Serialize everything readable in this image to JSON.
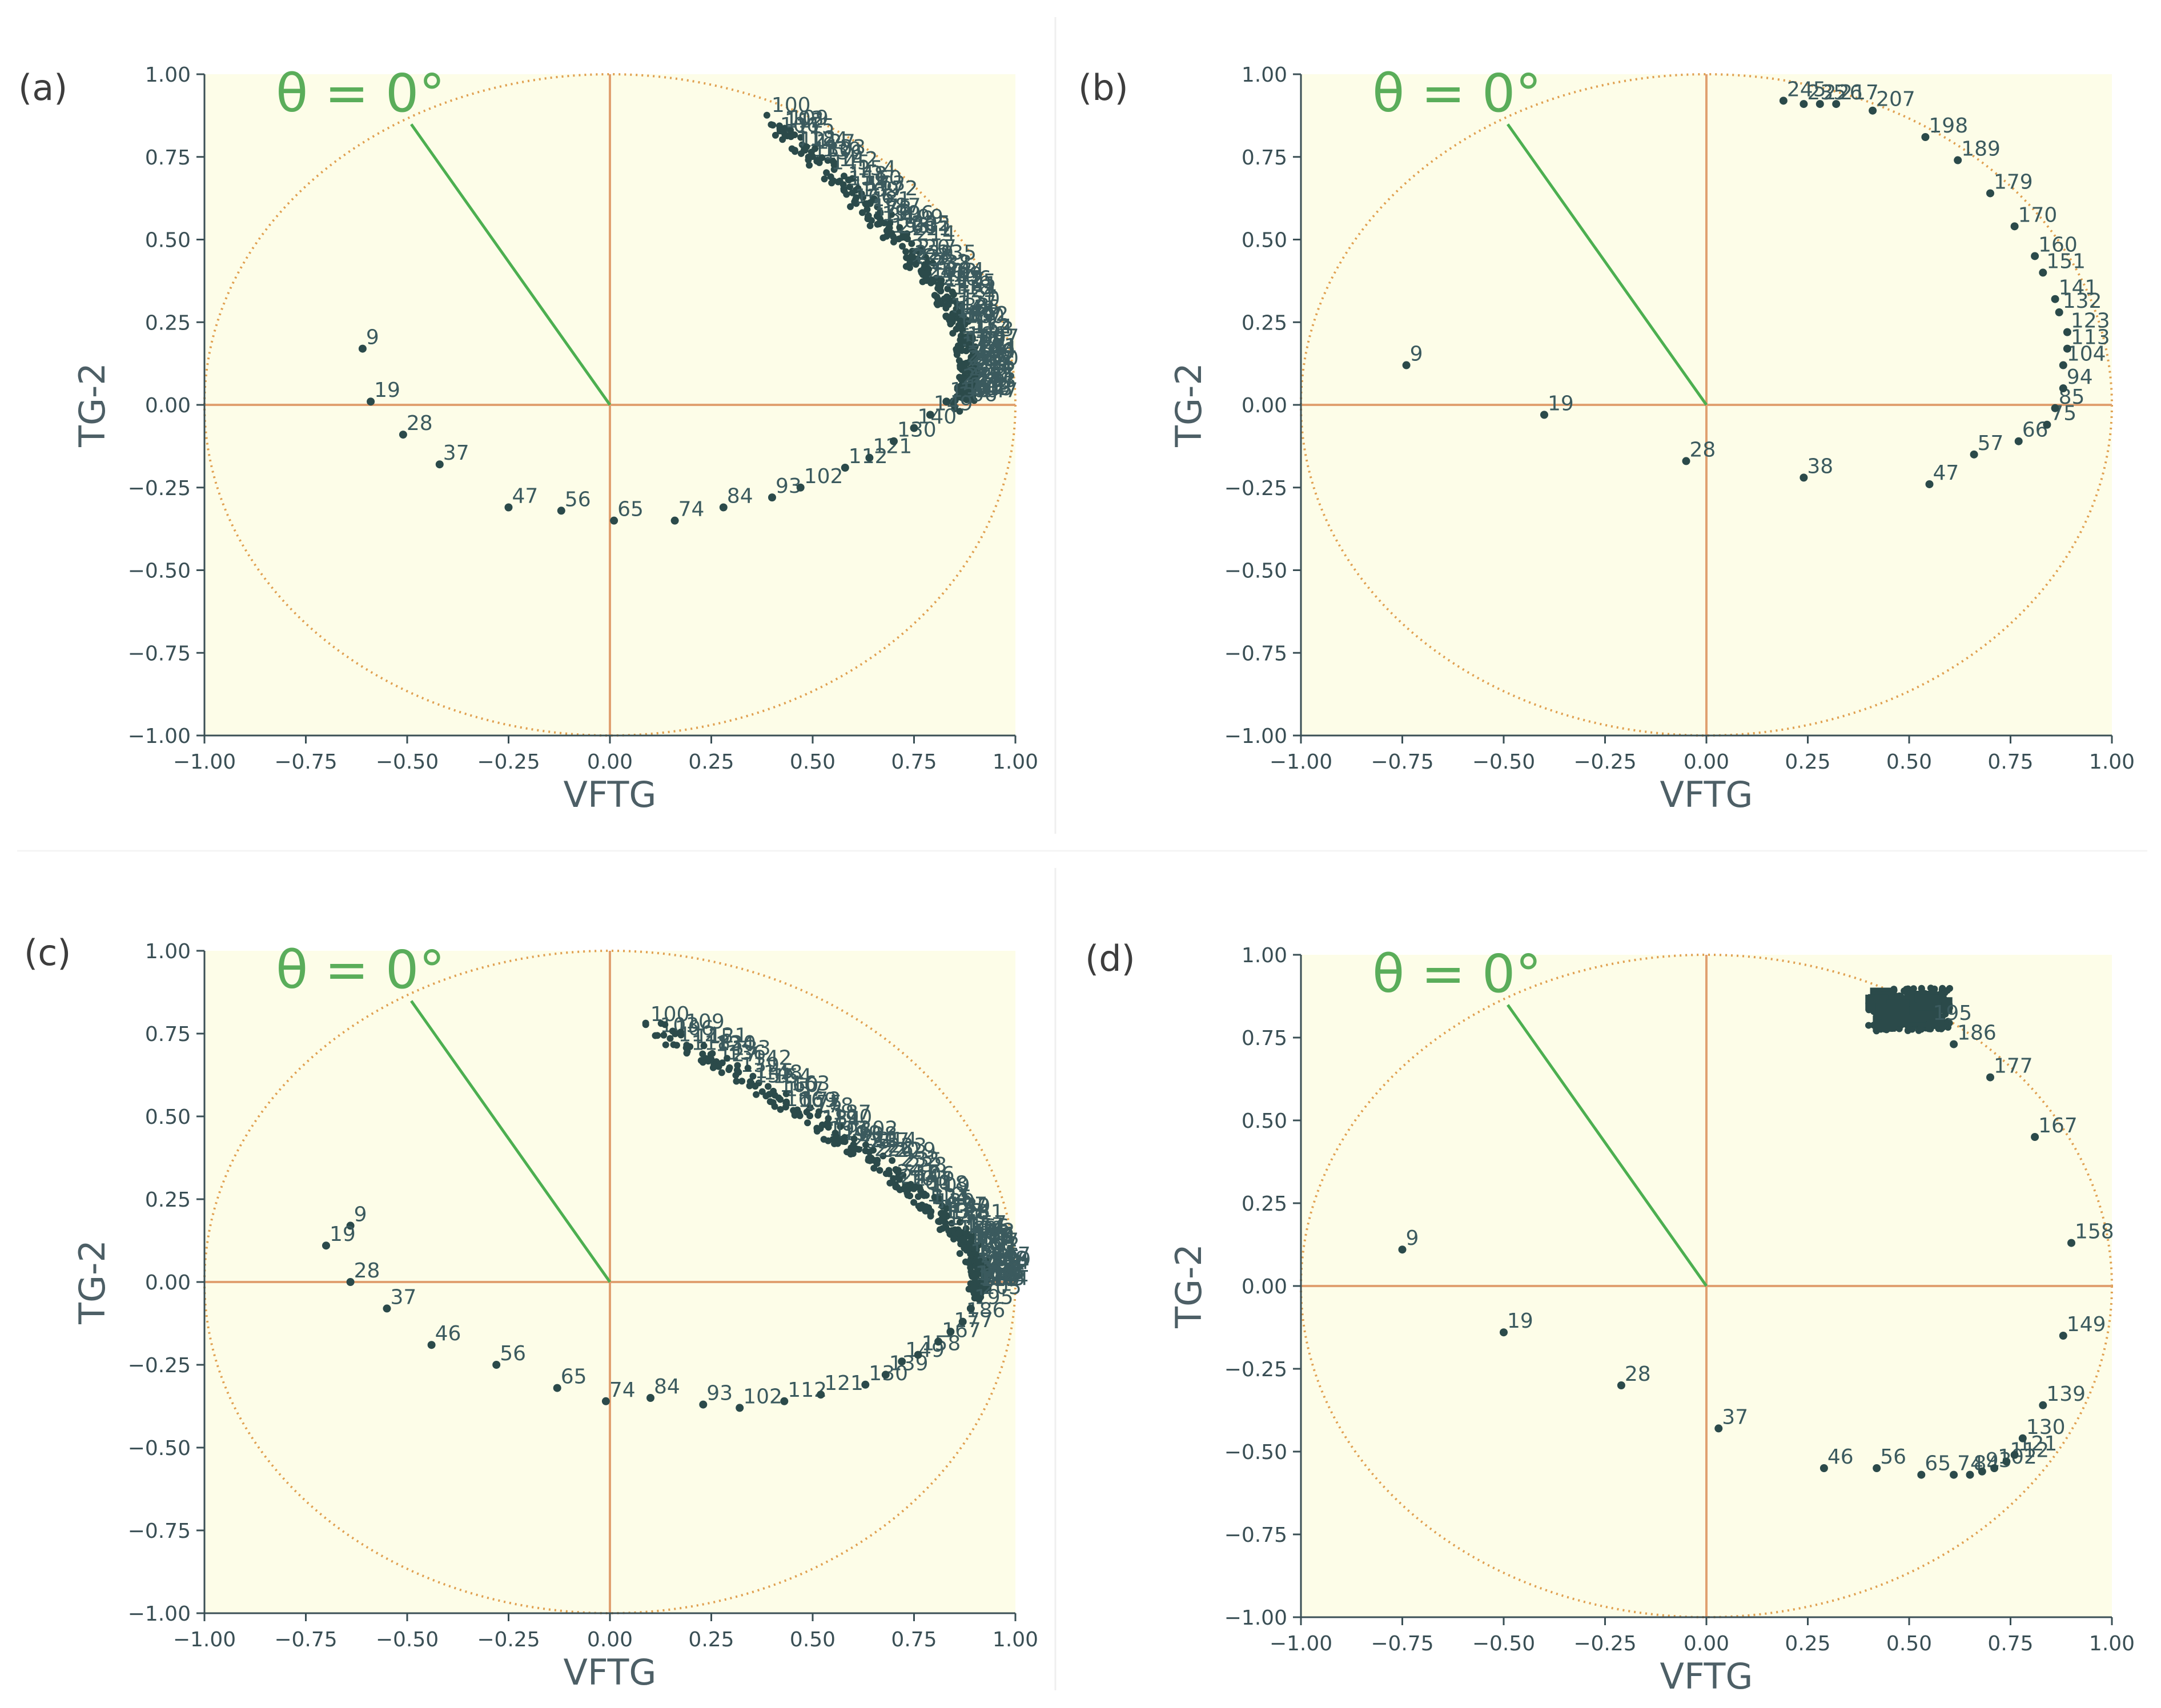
{
  "figure": {
    "theta_label": "θ = 0°"
  },
  "colors": {
    "plot_bg": "#fdfde8",
    "circle": "#e0a050",
    "axis_lines": "#e0a070",
    "theta_line": "#4caf50",
    "points": "#2b4a4a",
    "ticks": "#3a4f55"
  },
  "chart_data": [
    {
      "panel_label": "(a)",
      "type": "scatter",
      "xlabel": "VFTG",
      "ylabel": "TG-2",
      "xlim": [
        -1.0,
        1.0
      ],
      "ylim": [
        -1.0,
        1.0
      ],
      "xticks": [
        "−1.00",
        "−0.75",
        "−0.50",
        "−0.25",
        "0.00",
        "0.25",
        "0.50",
        "0.75",
        "1.00"
      ],
      "yticks": [
        "1.00",
        "0.75",
        "0.50",
        "0.25",
        "0.00",
        "−0.25",
        "−0.50",
        "−0.75",
        "−1.00"
      ],
      "theta_deg": 0,
      "points": [
        {
          "label": "9",
          "x": -0.61,
          "y": 0.17
        },
        {
          "label": "19",
          "x": -0.59,
          "y": 0.01
        },
        {
          "label": "28",
          "x": -0.51,
          "y": -0.09
        },
        {
          "label": "37",
          "x": -0.42,
          "y": -0.18
        },
        {
          "label": "47",
          "x": -0.25,
          "y": -0.31
        },
        {
          "label": "56",
          "x": -0.12,
          "y": -0.32
        },
        {
          "label": "65",
          "x": 0.01,
          "y": -0.35
        },
        {
          "label": "74",
          "x": 0.16,
          "y": -0.35
        },
        {
          "label": "84",
          "x": 0.28,
          "y": -0.31
        },
        {
          "label": "93",
          "x": 0.4,
          "y": -0.28
        },
        {
          "label": "102",
          "x": 0.47,
          "y": -0.25
        },
        {
          "label": "112",
          "x": 0.58,
          "y": -0.19
        },
        {
          "label": "121",
          "x": 0.64,
          "y": -0.16
        },
        {
          "label": "130",
          "x": 0.7,
          "y": -0.11
        },
        {
          "label": "140",
          "x": 0.75,
          "y": -0.07
        },
        {
          "label": "149",
          "x": 0.79,
          "y": -0.03
        },
        {
          "label": "158",
          "x": 0.83,
          "y": 0.01
        }
      ],
      "dense": {
        "x0": 0.4,
        "y0": 0.86,
        "x1": 1.0,
        "y1": 0.25,
        "x2": 0.86,
        "y2": 0.0
      }
    },
    {
      "panel_label": "(b)",
      "type": "scatter",
      "xlabel": "VFTG",
      "ylabel": "TG-2",
      "xlim": [
        -1.0,
        1.0
      ],
      "ylim": [
        -1.0,
        1.0
      ],
      "xticks": [
        "−1.00",
        "−0.75",
        "−0.50",
        "−0.25",
        "0.00",
        "0.25",
        "0.50",
        "0.75",
        "1.00"
      ],
      "yticks": [
        "1.00",
        "0.75",
        "0.50",
        "0.25",
        "0.00",
        "−0.25",
        "−0.50",
        "−0.75",
        "−1.00"
      ],
      "theta_deg": 0,
      "points": [
        {
          "label": "9",
          "x": -0.74,
          "y": 0.12
        },
        {
          "label": "19",
          "x": -0.4,
          "y": -0.03
        },
        {
          "label": "28",
          "x": -0.05,
          "y": -0.17
        },
        {
          "label": "38",
          "x": 0.24,
          "y": -0.22
        },
        {
          "label": "47",
          "x": 0.55,
          "y": -0.24
        },
        {
          "label": "57",
          "x": 0.66,
          "y": -0.15
        },
        {
          "label": "66",
          "x": 0.77,
          "y": -0.11
        },
        {
          "label": "75",
          "x": 0.84,
          "y": -0.06
        },
        {
          "label": "85",
          "x": 0.86,
          "y": -0.01
        },
        {
          "label": "94",
          "x": 0.88,
          "y": 0.05
        },
        {
          "label": "104",
          "x": 0.88,
          "y": 0.12
        },
        {
          "label": "113",
          "x": 0.89,
          "y": 0.17
        },
        {
          "label": "123",
          "x": 0.89,
          "y": 0.22
        },
        {
          "label": "132",
          "x": 0.87,
          "y": 0.28
        },
        {
          "label": "141",
          "x": 0.86,
          "y": 0.32
        },
        {
          "label": "151",
          "x": 0.83,
          "y": 0.4
        },
        {
          "label": "160",
          "x": 0.81,
          "y": 0.45
        },
        {
          "label": "170",
          "x": 0.76,
          "y": 0.54
        },
        {
          "label": "179",
          "x": 0.7,
          "y": 0.64
        },
        {
          "label": "189",
          "x": 0.62,
          "y": 0.74
        },
        {
          "label": "198",
          "x": 0.54,
          "y": 0.81
        },
        {
          "label": "207",
          "x": 0.41,
          "y": 0.89
        },
        {
          "label": "217",
          "x": 0.32,
          "y": 0.91
        },
        {
          "label": "226",
          "x": 0.28,
          "y": 0.91
        },
        {
          "label": "235",
          "x": 0.24,
          "y": 0.91
        },
        {
          "label": "245",
          "x": 0.19,
          "y": 0.92
        }
      ]
    },
    {
      "panel_label": "(c)",
      "type": "scatter",
      "xlabel": "VFTG",
      "ylabel": "TG-2",
      "xlim": [
        -1.0,
        1.0
      ],
      "ylim": [
        -1.0,
        1.0
      ],
      "xticks": [
        "−1.00",
        "−0.75",
        "−0.50",
        "−0.25",
        "0.00",
        "0.25",
        "0.50",
        "0.75",
        "1.00"
      ],
      "yticks": [
        "1.00",
        "0.75",
        "0.50",
        "0.25",
        "0.00",
        "−0.25",
        "−0.50",
        "−0.75",
        "−1.00"
      ],
      "theta_deg": 0,
      "points": [
        {
          "label": "9",
          "x": -0.64,
          "y": 0.17
        },
        {
          "label": "19",
          "x": -0.7,
          "y": 0.11
        },
        {
          "label": "28",
          "x": -0.64,
          "y": 0.0
        },
        {
          "label": "37",
          "x": -0.55,
          "y": -0.08
        },
        {
          "label": "46",
          "x": -0.44,
          "y": -0.19
        },
        {
          "label": "56",
          "x": -0.28,
          "y": -0.25
        },
        {
          "label": "65",
          "x": -0.13,
          "y": -0.32
        },
        {
          "label": "74",
          "x": -0.01,
          "y": -0.36
        },
        {
          "label": "84",
          "x": 0.1,
          "y": -0.35
        },
        {
          "label": "93",
          "x": 0.23,
          "y": -0.37
        },
        {
          "label": "102",
          "x": 0.32,
          "y": -0.38
        },
        {
          "label": "112",
          "x": 0.43,
          "y": -0.36
        },
        {
          "label": "121",
          "x": 0.52,
          "y": -0.34
        },
        {
          "label": "130",
          "x": 0.63,
          "y": -0.31
        },
        {
          "label": "139",
          "x": 0.68,
          "y": -0.28
        },
        {
          "label": "149",
          "x": 0.72,
          "y": -0.24
        },
        {
          "label": "158",
          "x": 0.76,
          "y": -0.22
        },
        {
          "label": "167",
          "x": 0.81,
          "y": -0.18
        },
        {
          "label": "177",
          "x": 0.84,
          "y": -0.15
        },
        {
          "label": "186",
          "x": 0.87,
          "y": -0.12
        },
        {
          "label": "195",
          "x": 0.89,
          "y": -0.08
        },
        {
          "label": "205",
          "x": 0.91,
          "y": -0.05
        }
      ],
      "dense": {
        "x0": 0.1,
        "y0": 0.78,
        "x1": 1.02,
        "y1": 0.15,
        "x2": 0.9,
        "y2": -0.03
      }
    },
    {
      "panel_label": "(d)",
      "type": "scatter",
      "xlabel": "VFTG",
      "ylabel": "TG-2",
      "xlim": [
        -1.0,
        1.0
      ],
      "ylim": [
        -1.0,
        1.0
      ],
      "xticks": [
        "−1.00",
        "−0.75",
        "−0.50",
        "−0.25",
        "0.00",
        "0.25",
        "0.50",
        "0.75",
        "1.00"
      ],
      "yticks": [
        "1.00",
        "0.75",
        "0.50",
        "0.25",
        "0.00",
        "−0.25",
        "−0.50",
        "−0.75",
        "−1.00"
      ],
      "theta_deg": 0,
      "points": [
        {
          "label": "9",
          "x": -0.75,
          "y": 0.11
        },
        {
          "label": "19",
          "x": -0.5,
          "y": -0.14
        },
        {
          "label": "28",
          "x": -0.21,
          "y": -0.3
        },
        {
          "label": "37",
          "x": 0.03,
          "y": -0.43
        },
        {
          "label": "46",
          "x": 0.29,
          "y": -0.55
        },
        {
          "label": "56",
          "x": 0.42,
          "y": -0.55
        },
        {
          "label": "65",
          "x": 0.53,
          "y": -0.57
        },
        {
          "label": "74",
          "x": 0.61,
          "y": -0.57
        },
        {
          "label": "84",
          "x": 0.65,
          "y": -0.57
        },
        {
          "label": "93",
          "x": 0.68,
          "y": -0.56
        },
        {
          "label": "102",
          "x": 0.71,
          "y": -0.55
        },
        {
          "label": "112",
          "x": 0.74,
          "y": -0.53
        },
        {
          "label": "121",
          "x": 0.76,
          "y": -0.51
        },
        {
          "label": "130",
          "x": 0.78,
          "y": -0.46
        },
        {
          "label": "139",
          "x": 0.83,
          "y": -0.36
        },
        {
          "label": "149",
          "x": 0.88,
          "y": -0.15
        },
        {
          "label": "158",
          "x": 0.9,
          "y": 0.13
        },
        {
          "label": "167",
          "x": 0.81,
          "y": 0.45
        },
        {
          "label": "177",
          "x": 0.7,
          "y": 0.63
        },
        {
          "label": "186",
          "x": 0.61,
          "y": 0.73
        },
        {
          "label": "195",
          "x": 0.55,
          "y": 0.79
        }
      ],
      "dense_box": {
        "x0": 0.4,
        "x1": 0.6,
        "y0": 0.77,
        "y1": 0.9
      }
    }
  ]
}
